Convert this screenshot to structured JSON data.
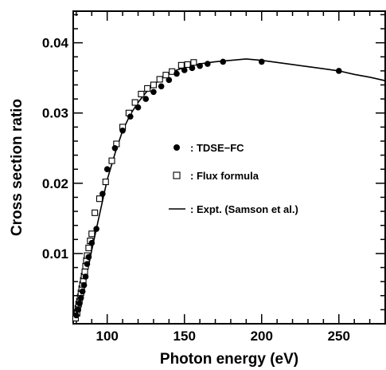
{
  "chart_data": {
    "type": "scatter",
    "xlabel": "Photon energy (eV)",
    "ylabel": "Cross section ratio",
    "xlim": [
      78,
      280
    ],
    "ylim": [
      0,
      0.0445
    ],
    "x_ticks": [
      100,
      150,
      200,
      250
    ],
    "y_ticks": [
      0.01,
      0.02,
      0.03,
      0.04
    ],
    "x_tick_labels": [
      "100",
      "150",
      "200",
      "250"
    ],
    "y_tick_labels": [
      "0.01",
      "0.02",
      "0.03",
      "0.04"
    ],
    "grid": false,
    "legend_placement": "center-right",
    "series": [
      {
        "name": ": TDSE−FC",
        "marker": "filled-circle",
        "color": "#000000",
        "x": [
          80,
          81,
          82,
          83,
          84,
          85,
          86,
          87,
          88,
          90,
          93,
          97,
          100,
          105,
          110,
          115,
          120,
          125,
          130,
          135,
          140,
          145,
          150,
          155,
          160,
          165,
          175,
          200,
          250
        ],
        "y": [
          0.0012,
          0.002,
          0.0029,
          0.0037,
          0.0046,
          0.0055,
          0.0067,
          0.0085,
          0.0095,
          0.0115,
          0.0135,
          0.0185,
          0.022,
          0.025,
          0.0275,
          0.0295,
          0.0308,
          0.032,
          0.033,
          0.0338,
          0.0347,
          0.0356,
          0.0361,
          0.0364,
          0.0367,
          0.037,
          0.0373,
          0.0373,
          0.036
        ]
      },
      {
        "name": ": Flux formula",
        "marker": "open-square",
        "color": "#000000",
        "x": [
          79.5,
          80.5,
          81,
          81.5,
          82,
          82.5,
          83,
          83.5,
          84,
          84.5,
          85,
          85.5,
          86,
          86.5,
          87,
          88,
          89,
          90,
          92,
          95,
          99,
          103,
          106,
          110,
          114,
          118,
          122,
          126,
          130,
          134,
          138,
          142,
          148,
          152,
          156
        ],
        "y": [
          0.0008,
          0.0015,
          0.0022,
          0.0028,
          0.0032,
          0.0038,
          0.0044,
          0.005,
          0.0056,
          0.0062,
          0.0068,
          0.0074,
          0.0082,
          0.009,
          0.0097,
          0.0108,
          0.0118,
          0.0128,
          0.0158,
          0.0178,
          0.0202,
          0.0232,
          0.0256,
          0.028,
          0.03,
          0.0315,
          0.0327,
          0.0335,
          0.034,
          0.0348,
          0.0354,
          0.0359,
          0.0368,
          0.0369,
          0.0372
        ]
      },
      {
        "name": ": Expt. (Samson et al.)",
        "marker": "line",
        "color": "#000000",
        "x": [
          79,
          80,
          82,
          84,
          86,
          88,
          90,
          93,
          96,
          100,
          105,
          110,
          115,
          120,
          125,
          130,
          135,
          140,
          145,
          150,
          160,
          170,
          180,
          190,
          200,
          210,
          220,
          230,
          240,
          250,
          260,
          270,
          280
        ],
        "y": [
          0.0005,
          0.0015,
          0.0032,
          0.005,
          0.0067,
          0.0083,
          0.0105,
          0.0135,
          0.0165,
          0.0205,
          0.0242,
          0.0275,
          0.0298,
          0.0315,
          0.0329,
          0.034,
          0.0349,
          0.0356,
          0.0361,
          0.0365,
          0.037,
          0.0373,
          0.0375,
          0.0377,
          0.0375,
          0.0372,
          0.0369,
          0.0366,
          0.0363,
          0.036,
          0.0355,
          0.0351,
          0.0346
        ]
      }
    ]
  }
}
